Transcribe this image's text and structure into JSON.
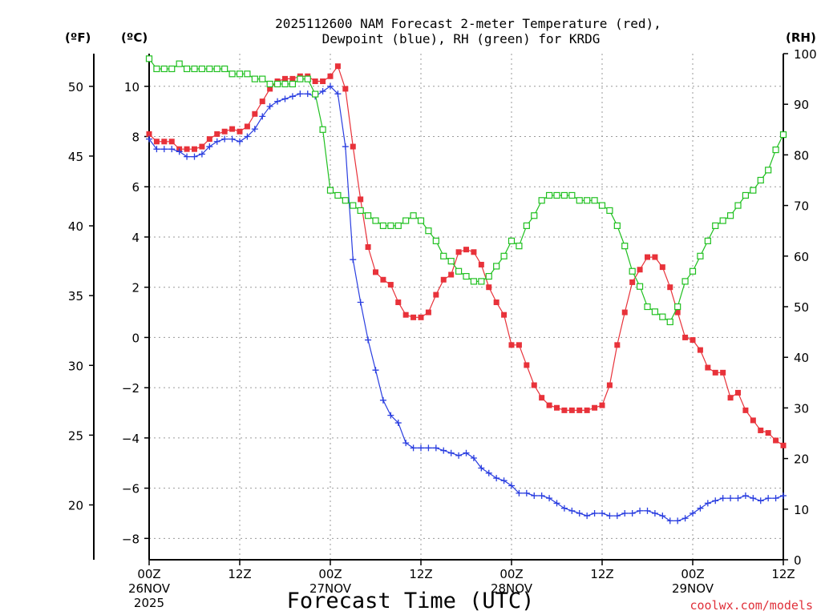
{
  "chart_data": {
    "type": "line",
    "title_lines": [
      "2025112600 NAM Forecast 2-meter Temperature (red),",
      "Dewpoint (blue), RH (green) for KRDG"
    ],
    "xlabel": "Forecast Time (UTC)",
    "credit": "coolwx.com/models",
    "units": {
      "fahrenheit": "(ºF)",
      "celsius": "(ºC)",
      "rh": "(RH)"
    },
    "x_hours": [
      0,
      84
    ],
    "x_ticks": [
      {
        "hour": 0,
        "label": "00Z",
        "day": "26NOV",
        "year": "2025"
      },
      {
        "hour": 12,
        "label": "12Z",
        "day": "",
        "year": ""
      },
      {
        "hour": 24,
        "label": "00Z",
        "day": "27NOV",
        "year": ""
      },
      {
        "hour": 36,
        "label": "12Z",
        "day": "",
        "year": ""
      },
      {
        "hour": 48,
        "label": "00Z",
        "day": "28NOV",
        "year": ""
      },
      {
        "hour": 60,
        "label": "12Z",
        "day": "",
        "year": ""
      },
      {
        "hour": 72,
        "label": "00Z",
        "day": "29NOV",
        "year": ""
      },
      {
        "hour": 84,
        "label": "12Z",
        "day": "",
        "year": ""
      }
    ],
    "y_celsius_range": [
      -8.85,
      11.3
    ],
    "y_celsius_ticks": [
      10,
      8,
      6,
      4,
      2,
      0,
      -2,
      -4,
      -6,
      -8
    ],
    "y_celsius_labels": [
      "10",
      "8",
      "6",
      "4",
      "2",
      "0",
      "−2",
      "−4",
      "−6",
      "−8"
    ],
    "y_fahrenheit_ticks": [
      50,
      45,
      40,
      35,
      30,
      25,
      20
    ],
    "y_fahrenheit_labels": [
      "50",
      "45",
      "40",
      "35",
      "30",
      "25",
      "20"
    ],
    "y_rh_range": [
      0,
      100
    ],
    "y_rh_ticks": [
      100,
      90,
      80,
      70,
      60,
      50,
      40,
      30,
      20,
      10,
      0
    ],
    "y_rh_labels": [
      "100",
      "90",
      "80",
      "70",
      "60",
      "50",
      "40",
      "30",
      "20",
      "10",
      "0"
    ],
    "colors": {
      "temperature": "#e8323a",
      "dewpoint": "#2a3ee0",
      "rh": "#20c020",
      "axis": "#000000",
      "credit": "#e0303a"
    },
    "series": [
      {
        "name": "Temperature (°C)",
        "axis": "celsius",
        "marker": "filled-square",
        "hours": [
          0,
          1,
          2,
          3,
          4,
          5,
          6,
          7,
          8,
          9,
          10,
          11,
          12,
          13,
          14,
          15,
          16,
          17,
          18,
          19,
          20,
          21,
          22,
          23,
          24,
          25,
          26,
          27,
          28,
          29,
          30,
          31,
          32,
          33,
          34,
          35,
          36,
          37,
          38,
          39,
          40,
          41,
          42,
          43,
          44,
          45,
          46,
          47,
          48,
          49,
          50,
          51,
          52,
          53,
          54,
          55,
          56,
          57,
          58,
          59,
          60,
          61,
          62,
          63,
          64,
          65,
          66,
          67,
          68,
          69,
          70,
          71,
          72,
          73,
          74,
          75,
          76,
          77,
          78,
          79,
          80,
          81,
          82,
          83,
          84
        ],
        "values": [
          8.1,
          7.8,
          7.8,
          7.8,
          7.5,
          7.5,
          7.5,
          7.6,
          7.9,
          8.1,
          8.2,
          8.3,
          8.2,
          8.4,
          8.9,
          9.4,
          9.9,
          10.2,
          10.3,
          10.3,
          10.4,
          10.4,
          10.2,
          10.2,
          10.4,
          10.8,
          9.9,
          7.6,
          5.5,
          3.6,
          2.6,
          2.3,
          2.1,
          1.4,
          0.9,
          0.8,
          0.8,
          1.0,
          1.7,
          2.3,
          2.5,
          3.4,
          3.5,
          3.4,
          2.9,
          2.0,
          1.4,
          0.9,
          -0.3,
          -0.3,
          -1.1,
          -1.9,
          -2.4,
          -2.7,
          -2.8,
          -2.9,
          -2.9,
          -2.9,
          -2.9,
          -2.8,
          -2.7,
          -1.9,
          -0.3,
          1.0,
          2.2,
          2.7,
          3.2,
          3.2,
          2.8,
          2.0,
          1.0,
          0.0,
          -0.1,
          -0.5,
          -1.2,
          -1.4,
          -1.4,
          -2.4,
          -2.2,
          -2.9,
          -3.3,
          -3.7,
          -3.8,
          -4.1,
          -4.3
        ]
      },
      {
        "name": "Dewpoint (°C)",
        "axis": "celsius",
        "marker": "plus",
        "hours": [
          0,
          1,
          2,
          3,
          4,
          5,
          6,
          7,
          8,
          9,
          10,
          11,
          12,
          13,
          14,
          15,
          16,
          17,
          18,
          19,
          20,
          21,
          22,
          23,
          24,
          25,
          26,
          27,
          28,
          29,
          30,
          31,
          32,
          33,
          34,
          35,
          36,
          37,
          38,
          39,
          40,
          41,
          42,
          43,
          44,
          45,
          46,
          47,
          48,
          49,
          50,
          51,
          52,
          53,
          54,
          55,
          56,
          57,
          58,
          59,
          60,
          61,
          62,
          63,
          64,
          65,
          66,
          67,
          68,
          69,
          70,
          71,
          72,
          73,
          74,
          75,
          76,
          77,
          78,
          79,
          80,
          81,
          82,
          83,
          84
        ],
        "values": [
          7.9,
          7.5,
          7.5,
          7.5,
          7.4,
          7.2,
          7.2,
          7.3,
          7.6,
          7.8,
          7.9,
          7.9,
          7.8,
          8.0,
          8.3,
          8.8,
          9.2,
          9.4,
          9.5,
          9.6,
          9.7,
          9.7,
          9.6,
          9.8,
          10.0,
          9.7,
          7.6,
          3.1,
          1.4,
          -0.1,
          -1.3,
          -2.5,
          -3.1,
          -3.4,
          -4.2,
          -4.4,
          -4.4,
          -4.4,
          -4.4,
          -4.5,
          -4.6,
          -4.7,
          -4.6,
          -4.8,
          -5.2,
          -5.4,
          -5.6,
          -5.7,
          -5.9,
          -6.2,
          -6.2,
          -6.3,
          -6.3,
          -6.4,
          -6.6,
          -6.8,
          -6.9,
          -7.0,
          -7.1,
          -7.0,
          -7.0,
          -7.1,
          -7.1,
          -7.0,
          -7.0,
          -6.9,
          -6.9,
          -7.0,
          -7.1,
          -7.3,
          -7.3,
          -7.2,
          -7.0,
          -6.8,
          -6.6,
          -6.5,
          -6.4,
          -6.4,
          -6.4,
          -6.3,
          -6.4,
          -6.5,
          -6.4,
          -6.4,
          -6.3
        ]
      },
      {
        "name": "RH (%)",
        "axis": "rh",
        "marker": "open-square",
        "hours": [
          0,
          1,
          2,
          3,
          4,
          5,
          6,
          7,
          8,
          9,
          10,
          11,
          12,
          13,
          14,
          15,
          16,
          17,
          18,
          19,
          20,
          21,
          22,
          23,
          24,
          25,
          26,
          27,
          28,
          29,
          30,
          31,
          32,
          33,
          34,
          35,
          36,
          37,
          38,
          39,
          40,
          41,
          42,
          43,
          44,
          45,
          46,
          47,
          48,
          49,
          50,
          51,
          52,
          53,
          54,
          55,
          56,
          57,
          58,
          59,
          60,
          61,
          62,
          63,
          64,
          65,
          66,
          67,
          68,
          69,
          70,
          71,
          72,
          73,
          74,
          75,
          76,
          77,
          78,
          79,
          80,
          81,
          82,
          83,
          84
        ],
        "values": [
          99,
          97,
          97,
          97,
          98,
          97,
          97,
          97,
          97,
          97,
          97,
          96,
          96,
          96,
          95,
          95,
          94,
          94,
          94,
          94,
          95,
          95,
          92,
          85,
          73,
          72,
          71,
          70,
          69,
          68,
          67,
          66,
          66,
          66,
          67,
          68,
          67,
          65,
          63,
          60,
          59,
          57,
          56,
          55,
          55,
          56,
          58,
          60,
          63,
          62,
          66,
          68,
          71,
          72,
          72,
          72,
          72,
          71,
          71,
          71,
          70,
          69,
          66,
          62,
          57,
          54,
          50,
          49,
          48,
          47,
          50,
          55,
          57,
          60,
          63,
          66,
          67,
          68,
          70,
          72,
          73,
          75,
          77,
          81,
          84
        ]
      }
    ]
  }
}
